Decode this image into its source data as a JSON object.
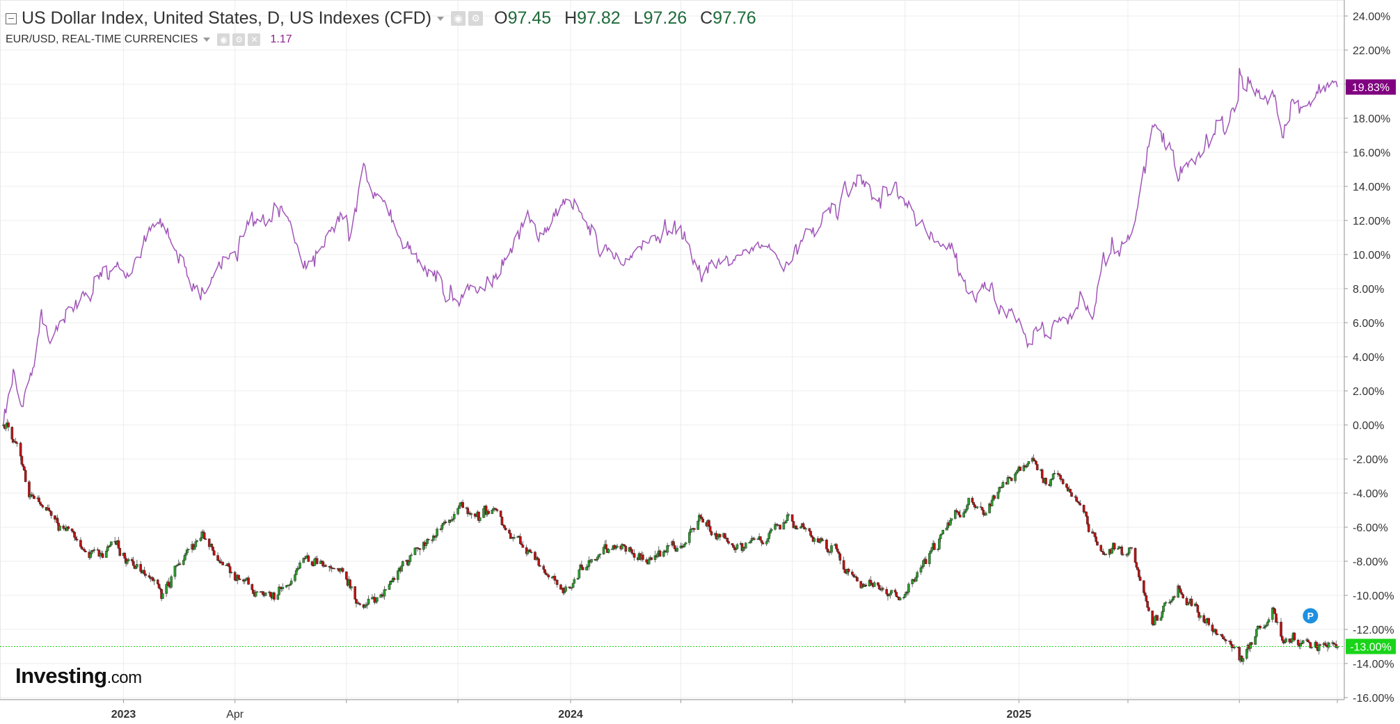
{
  "legend": {
    "main_title": "US Dollar Index, United States, D, US Indexes (CFD)",
    "open_label": "O",
    "open_value": "97.45",
    "high_label": "H",
    "high_value": "97.82",
    "low_label": "L",
    "low_value": "97.26",
    "close_label": "C",
    "close_value": "97.76",
    "secondary_title": "EUR/USD, REAL-TIME CURRENCIES",
    "secondary_value": "1.17"
  },
  "icons": {
    "collapse": "collapse-icon",
    "visibility": "eye-icon",
    "settings": "gear-icon",
    "remove": "close-icon",
    "dropdown": "chevron-down-icon",
    "marker": "P"
  },
  "logo": {
    "brand": "Investing",
    "suffix": ".com"
  },
  "colors": {
    "dxy_up": "#2e9a2e",
    "dxy_down": "#b81414",
    "eurusd_line": "#a055b8",
    "eurusd_badge": "#800080",
    "dxy_badge": "#1ad41a",
    "marker": "#1e90e0",
    "grid": "#ececec"
  },
  "chart_data": {
    "type": "line",
    "title": "US Dollar Index, United States, D, US Indexes (CFD)",
    "ylabel": "",
    "y_unit": "%",
    "ylim": [
      -16.5,
      24.5
    ],
    "y_ticks": [
      "24.00%",
      "22.00%",
      "20.00%",
      "18.00%",
      "16.00%",
      "14.00%",
      "12.00%",
      "10.00%",
      "8.00%",
      "6.00%",
      "4.00%",
      "2.00%",
      "0.00%",
      "-2.00%",
      "-4.00%",
      "-6.00%",
      "-8.00%",
      "-10.00%",
      "-12.00%",
      "-14.00%",
      "-16.00%"
    ],
    "y_tick_values": [
      24,
      22,
      20,
      18,
      16,
      14,
      12,
      10,
      8,
      6,
      4,
      2,
      0,
      -2,
      -4,
      -6,
      -8,
      -10,
      -12,
      -14,
      -16
    ],
    "x_range": [
      "2022-09-26",
      "2025-09-19"
    ],
    "x_ticks": [
      {
        "label": "2023",
        "date": "2023-01-02",
        "bold": true
      },
      {
        "label": "Apr",
        "date": "2023-04-03",
        "bold": false
      },
      {
        "label": "2024",
        "date": "2024-01-02",
        "bold": true
      },
      {
        "label": "2025",
        "date": "2025-01-02",
        "bold": true
      }
    ],
    "minor_tick_dates": [
      "2023-07-03",
      "2023-10-02",
      "2024-04-01",
      "2024-07-01",
      "2024-10-01",
      "2025-04-01",
      "2025-07-01",
      "2025-09-19"
    ],
    "grid": true,
    "series": [
      {
        "name": "EUR/USD, REAL-TIME CURRENCIES",
        "style": "line",
        "last_label": "19.83%",
        "points": [
          [
            "2022-09-26",
            0.0
          ],
          [
            "2022-09-30",
            1.5
          ],
          [
            "2022-10-05",
            3.0
          ],
          [
            "2022-10-12",
            1.5
          ],
          [
            "2022-10-20",
            3.5
          ],
          [
            "2022-10-27",
            6.0
          ],
          [
            "2022-11-04",
            5.0
          ],
          [
            "2022-11-15",
            6.5
          ],
          [
            "2022-11-28",
            7.2
          ],
          [
            "2022-12-08",
            8.5
          ],
          [
            "2022-12-19",
            9.0
          ],
          [
            "2023-01-04",
            8.5
          ],
          [
            "2023-01-18",
            10.5
          ],
          [
            "2023-02-01",
            12.0
          ],
          [
            "2023-02-06",
            10.8
          ],
          [
            "2023-02-20",
            9.5
          ],
          [
            "2023-03-08",
            8.0
          ],
          [
            "2023-03-22",
            9.5
          ],
          [
            "2023-04-04",
            10.5
          ],
          [
            "2023-04-26",
            12.3
          ],
          [
            "2023-05-08",
            12.8
          ],
          [
            "2023-05-31",
            9.5
          ],
          [
            "2023-06-12",
            10.5
          ],
          [
            "2023-06-26",
            11.8
          ],
          [
            "2023-07-06",
            11.0
          ],
          [
            "2023-07-18",
            14.9
          ],
          [
            "2023-07-28",
            13.0
          ],
          [
            "2023-08-11",
            11.5
          ],
          [
            "2023-08-25",
            10.5
          ],
          [
            "2023-09-08",
            9.0
          ],
          [
            "2023-09-27",
            7.2
          ],
          [
            "2023-10-13",
            8.5
          ],
          [
            "2023-10-31",
            8.5
          ],
          [
            "2023-11-15",
            10.5
          ],
          [
            "2023-11-29",
            12.5
          ],
          [
            "2023-12-08",
            11.0
          ],
          [
            "2023-12-28",
            13.5
          ],
          [
            "2024-01-10",
            12.0
          ],
          [
            "2024-02-02",
            10.5
          ],
          [
            "2024-02-14",
            9.5
          ],
          [
            "2024-03-08",
            11.0
          ],
          [
            "2024-03-25",
            11.5
          ],
          [
            "2024-04-05",
            10.5
          ],
          [
            "2024-04-16",
            8.8
          ],
          [
            "2024-05-03",
            9.5
          ],
          [
            "2024-05-22",
            10.5
          ],
          [
            "2024-06-05",
            10.8
          ],
          [
            "2024-06-14",
            10.0
          ],
          [
            "2024-06-26",
            9.5
          ],
          [
            "2024-07-17",
            11.2
          ],
          [
            "2024-08-05",
            12.5
          ],
          [
            "2024-08-23",
            14.5
          ],
          [
            "2024-09-06",
            13.0
          ],
          [
            "2024-09-25",
            14.3
          ],
          [
            "2024-10-10",
            12.0
          ],
          [
            "2024-10-24",
            11.0
          ],
          [
            "2024-11-08",
            10.0
          ],
          [
            "2024-11-22",
            7.5
          ],
          [
            "2024-12-06",
            8.0
          ],
          [
            "2024-12-20",
            6.5
          ],
          [
            "2025-01-13",
            5.0
          ],
          [
            "2025-02-03",
            6.0
          ],
          [
            "2025-02-20",
            7.0
          ],
          [
            "2025-03-04",
            6.5
          ],
          [
            "2025-03-12",
            9.5
          ],
          [
            "2025-04-03",
            11.5
          ],
          [
            "2025-04-11",
            13.5
          ],
          [
            "2025-04-21",
            17.5
          ],
          [
            "2025-05-05",
            16.5
          ],
          [
            "2025-05-12",
            14.5
          ],
          [
            "2025-05-27",
            16.0
          ],
          [
            "2025-06-16",
            17.5
          ],
          [
            "2025-06-30",
            19.0
          ],
          [
            "2025-07-01",
            20.7
          ],
          [
            "2025-07-14",
            19.5
          ],
          [
            "2025-07-29",
            19.5
          ],
          [
            "2025-08-05",
            17.2
          ],
          [
            "2025-08-14",
            19.0
          ],
          [
            "2025-09-05",
            19.5
          ],
          [
            "2025-09-12",
            20.0
          ],
          [
            "2025-09-19",
            19.83
          ]
        ]
      },
      {
        "name": "US Dollar Index, United States, D, US Indexes (CFD)",
        "style": "candlestick",
        "last_label": "-13.00%",
        "points": [
          [
            "2022-09-26",
            0.0
          ],
          [
            "2022-10-05",
            -1.0
          ],
          [
            "2022-10-12",
            -2.5
          ],
          [
            "2022-10-17",
            -4.0
          ],
          [
            "2022-10-28",
            -4.5
          ],
          [
            "2022-11-10",
            -5.5
          ],
          [
            "2022-11-25",
            -7.0
          ],
          [
            "2022-12-12",
            -7.5
          ],
          [
            "2022-12-28",
            -7.2
          ],
          [
            "2023-01-12",
            -8.5
          ],
          [
            "2023-01-26",
            -9.0
          ],
          [
            "2023-02-02",
            -10.0
          ],
          [
            "2023-02-17",
            -8.0
          ],
          [
            "2023-03-08",
            -6.5
          ],
          [
            "2023-03-22",
            -8.0
          ],
          [
            "2023-04-13",
            -9.5
          ],
          [
            "2023-05-05",
            -10.0
          ],
          [
            "2023-05-31",
            -8.0
          ],
          [
            "2023-06-15",
            -8.5
          ],
          [
            "2023-06-30",
            -8.5
          ],
          [
            "2023-07-14",
            -11.0
          ],
          [
            "2023-07-28",
            -10.0
          ],
          [
            "2023-08-16",
            -8.5
          ],
          [
            "2023-09-06",
            -7.0
          ],
          [
            "2023-09-22",
            -5.5
          ],
          [
            "2023-10-03",
            -4.8
          ],
          [
            "2023-10-19",
            -5.5
          ],
          [
            "2023-11-03",
            -5.0
          ],
          [
            "2023-11-15",
            -6.5
          ],
          [
            "2023-11-29",
            -7.5
          ],
          [
            "2023-12-14",
            -9.0
          ],
          [
            "2023-12-28",
            -9.8
          ],
          [
            "2024-01-10",
            -8.5
          ],
          [
            "2024-02-14",
            -7.0
          ],
          [
            "2024-03-08",
            -8.0
          ],
          [
            "2024-04-03",
            -7.0
          ],
          [
            "2024-04-16",
            -5.5
          ],
          [
            "2024-05-03",
            -6.5
          ],
          [
            "2024-05-15",
            -7.2
          ],
          [
            "2024-06-05",
            -7.0
          ],
          [
            "2024-06-26",
            -5.5
          ],
          [
            "2024-07-17",
            -6.5
          ],
          [
            "2024-08-05",
            -7.5
          ],
          [
            "2024-08-23",
            -9.0
          ],
          [
            "2024-09-06",
            -9.5
          ],
          [
            "2024-09-27",
            -10.0
          ],
          [
            "2024-10-10",
            -9.0
          ],
          [
            "2024-10-25",
            -7.0
          ],
          [
            "2024-11-08",
            -5.5
          ],
          [
            "2024-11-22",
            -4.5
          ],
          [
            "2024-12-06",
            -5.0
          ],
          [
            "2024-12-20",
            -3.5
          ],
          [
            "2025-01-13",
            -2.2
          ],
          [
            "2025-01-24",
            -3.2
          ],
          [
            "2025-02-03",
            -3.0
          ],
          [
            "2025-02-20",
            -4.5
          ],
          [
            "2025-03-04",
            -6.5
          ],
          [
            "2025-03-12",
            -7.5
          ],
          [
            "2025-04-03",
            -7.0
          ],
          [
            "2025-04-11",
            -9.0
          ],
          [
            "2025-04-21",
            -11.5
          ],
          [
            "2025-05-05",
            -10.5
          ],
          [
            "2025-05-12",
            -9.5
          ],
          [
            "2025-06-02",
            -11.5
          ],
          [
            "2025-06-16",
            -12.5
          ],
          [
            "2025-06-30",
            -13.0
          ],
          [
            "2025-07-01",
            -13.8
          ],
          [
            "2025-07-14",
            -12.5
          ],
          [
            "2025-07-29",
            -11.0
          ],
          [
            "2025-08-05",
            -12.5
          ],
          [
            "2025-08-22",
            -12.8
          ],
          [
            "2025-09-05",
            -12.5
          ],
          [
            "2025-09-19",
            -13.0
          ]
        ]
      }
    ],
    "annotations": [
      {
        "label": "P",
        "date": "2025-08-28",
        "y": -11.2
      }
    ]
  }
}
